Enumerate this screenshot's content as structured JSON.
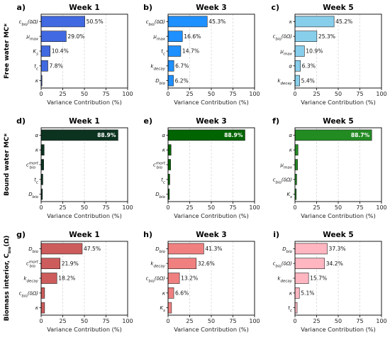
{
  "row_labels": [
    "Free water MC*",
    "Bound water MC*",
    "Biomass interior, C_bio(Ω)"
  ],
  "chart_data": [
    {
      "type": "bar",
      "letter": "a)",
      "title": "Week 1",
      "row": 0,
      "col": 0,
      "color": "#4169e1",
      "xlabel": "Variance Contribution (%)",
      "xlim": [
        0,
        100
      ],
      "xticks": [
        "0",
        "25",
        "50",
        "75",
        "100"
      ],
      "categories": [
        "c_bio(δΩ)",
        "μ_max",
        "K_s",
        "t_c",
        "κ"
      ],
      "values": [
        50.5,
        29.0,
        10.4,
        7.8,
        1.0
      ],
      "labels": [
        "50.5%",
        "29.0%",
        "10.4%",
        "7.8%",
        ""
      ]
    },
    {
      "type": "bar",
      "letter": "b)",
      "title": "Week 3",
      "row": 0,
      "col": 1,
      "color": "#1e90ff",
      "xlabel": "Variance Contribution (%)",
      "xlim": [
        0,
        100
      ],
      "xticks": [
        "0",
        "25",
        "50",
        "75",
        "100"
      ],
      "categories": [
        "c_bio(δΩ)",
        "μ_max",
        "t_c",
        "k_decay",
        "D_bio"
      ],
      "values": [
        45.3,
        16.6,
        14.7,
        6.7,
        6.2
      ],
      "labels": [
        "45.3%",
        "16.6%",
        "14.7%",
        "6.7%",
        "6.2%"
      ]
    },
    {
      "type": "bar",
      "letter": "c)",
      "title": "Week 5",
      "row": 0,
      "col": 2,
      "color": "#87ceeb",
      "xlabel": "Variance Contribution (%)",
      "xlim": [
        0,
        100
      ],
      "xticks": [
        "0",
        "25",
        "50",
        "75",
        "100"
      ],
      "categories": [
        "κ",
        "c_bio(δΩ)",
        "μ_max",
        "α",
        "k_decay"
      ],
      "values": [
        45.2,
        25.3,
        10.9,
        6.3,
        5.4
      ],
      "labels": [
        "45.2%",
        "25.3%",
        "10.9%",
        "6.3%",
        "5.4%"
      ]
    },
    {
      "type": "bar",
      "letter": "d)",
      "title": "Week 1",
      "row": 1,
      "col": 0,
      "color": "#0b3320",
      "xlabel": "Variance Contribution (%)",
      "xlim": [
        0,
        100
      ],
      "xticks": [
        "0",
        "25",
        "50",
        "75",
        "100"
      ],
      "categories": [
        "α",
        "κ",
        "c_bio^mort",
        "t_c",
        "D_bio"
      ],
      "values": [
        88.9,
        3.5,
        3.0,
        2.0,
        1.5
      ],
      "labels": [
        "88.9%",
        "",
        "",
        "",
        ""
      ]
    },
    {
      "type": "bar",
      "letter": "e)",
      "title": "Week 3",
      "row": 1,
      "col": 1,
      "color": "#006400",
      "xlabel": "Variance Contribution (%)",
      "xlim": [
        0,
        100
      ],
      "xticks": [
        "0",
        "25",
        "50",
        "75",
        "100"
      ],
      "categories": [
        "α",
        "κ",
        "c_bio^mort",
        "t_c",
        "D_bio"
      ],
      "values": [
        88.9,
        3.5,
        3.0,
        2.0,
        1.5
      ],
      "labels": [
        "88.9%",
        "",
        "",
        "",
        ""
      ]
    },
    {
      "type": "bar",
      "letter": "f)",
      "title": "Week 5",
      "row": 1,
      "col": 2,
      "color": "#228b22",
      "xlabel": "Variance Contribution (%)",
      "xlim": [
        0,
        100
      ],
      "xticks": [
        "0",
        "25",
        "50",
        "75",
        "100"
      ],
      "categories": [
        "α",
        "κ",
        "μ_max",
        "c_bio(δΩ)",
        "K_s"
      ],
      "values": [
        88.7,
        3.5,
        3.0,
        2.0,
        1.5
      ],
      "labels": [
        "88.7%",
        "",
        "",
        "",
        ""
      ]
    },
    {
      "type": "bar",
      "letter": "g)",
      "title": "Week 1",
      "row": 2,
      "col": 0,
      "color": "#cd5c5c",
      "xlabel": "Variance Contribution (%)",
      "xlim": [
        0,
        100
      ],
      "xticks": [
        "0",
        "25",
        "50",
        "75",
        "100"
      ],
      "categories": [
        "D_bio",
        "c_bio^mort",
        "k_decay",
        "c_bio(δΩ)",
        "κ"
      ],
      "values": [
        47.5,
        21.9,
        18.2,
        4.0,
        4.0
      ],
      "labels": [
        "47.5%",
        "21.9%",
        "18.2%",
        "",
        ""
      ]
    },
    {
      "type": "bar",
      "letter": "h)",
      "title": "Week 3",
      "row": 2,
      "col": 1,
      "color": "#f08080",
      "xlabel": "Variance Contribution (%)",
      "xlim": [
        0,
        100
      ],
      "xticks": [
        "0",
        "25",
        "50",
        "75",
        "100"
      ],
      "categories": [
        "D_bio",
        "k_decay",
        "c_bio(δΩ)",
        "κ",
        "K_s"
      ],
      "values": [
        41.3,
        32.6,
        13.2,
        6.6,
        4.0
      ],
      "labels": [
        "41.3%",
        "32.6%",
        "13.2%",
        "6.6%",
        ""
      ]
    },
    {
      "type": "bar",
      "letter": "i)",
      "title": "Week 5",
      "row": 2,
      "col": 2,
      "color": "#ffb6c1",
      "xlabel": "Variance Contribution (%)",
      "xlim": [
        0,
        100
      ],
      "xticks": [
        "0",
        "25",
        "50",
        "75",
        "100"
      ],
      "categories": [
        "D_bio",
        "c_bio(δΩ)",
        "k_decay",
        "κ",
        "t_c"
      ],
      "values": [
        37.3,
        34.2,
        15.7,
        5.1,
        2.5
      ],
      "labels": [
        "37.3%",
        "34.2%",
        "15.7%",
        "5.1%",
        ""
      ]
    }
  ]
}
